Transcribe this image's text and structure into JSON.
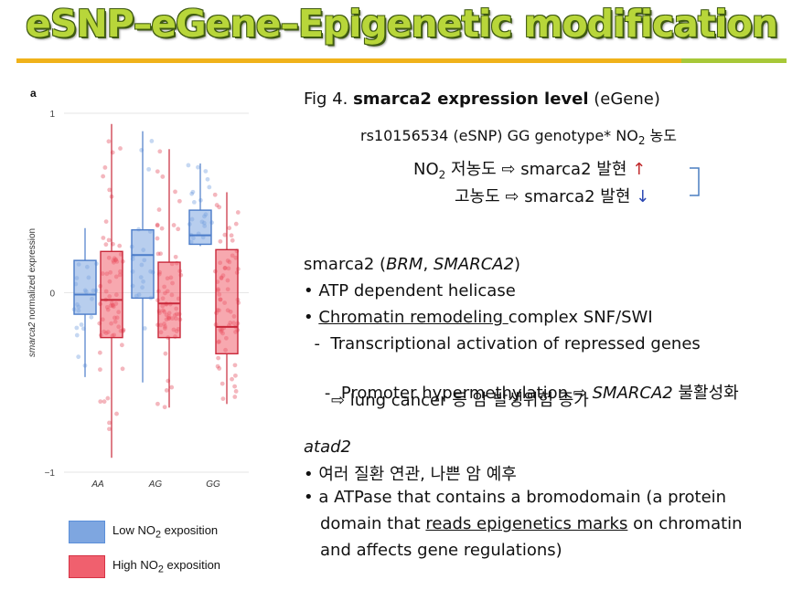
{
  "header": {
    "title": "eSNP–eGene–Epigenetic modification"
  },
  "panel_letter": "a",
  "chart_data": {
    "type": "box",
    "ylabel_italic": "smarca2",
    "ylabel_rest": " normalized expression",
    "ylim": [
      -1.1,
      1.1
    ],
    "yticks": [
      "1",
      "0",
      "−1"
    ],
    "categories": [
      "AA",
      "AG",
      "GG"
    ],
    "series": [
      {
        "name": "Low NO₂ exposition",
        "color": "#5b8fd9",
        "boxes": [
          {
            "min": -0.47,
            "q1": -0.12,
            "median": -0.01,
            "q3": 0.18,
            "max": 0.36
          },
          {
            "min": -0.5,
            "q1": -0.03,
            "median": 0.21,
            "q3": 0.35,
            "max": 0.9
          },
          {
            "min": 0.26,
            "q1": 0.27,
            "median": 0.32,
            "q3": 0.46,
            "max": 0.72
          }
        ]
      },
      {
        "name": "High NO₂ exposition",
        "color": "#e03045",
        "boxes": [
          {
            "min": -0.92,
            "q1": -0.25,
            "median": -0.04,
            "q3": 0.23,
            "max": 0.94
          },
          {
            "min": -0.64,
            "q1": -0.25,
            "median": -0.06,
            "q3": 0.17,
            "max": 0.8
          },
          {
            "min": -0.62,
            "q1": -0.34,
            "median": -0.19,
            "q3": 0.24,
            "max": 0.56
          }
        ]
      }
    ]
  },
  "legend": {
    "low": {
      "pre": "Low NO",
      "sub": "2",
      "post": " exposition",
      "color": "#7ea6e0",
      "border": "#5b8fd9"
    },
    "high": {
      "pre": "High NO",
      "sub": "2",
      "post": " exposition",
      "color": "#f0606e",
      "border": "#d63345"
    }
  },
  "content": {
    "fig_prefix": "Fig 4.  ",
    "fig_bold": "smarca2 expression level",
    "fig_suffix": " (eGene)",
    "snp_line_pre": "rs10156534 (eSNP) GG genotype* NO",
    "snp_line_sub": "2",
    "snp_line_post": " 농도",
    "low_line_pre": "NO",
    "low_line_sub": "2",
    "low_line_post": " 저농도 ⇨ smarca2 발현 ",
    "up_arrow": "↑",
    "high_line": "고농도 ⇨ smarca2 발현 ",
    "down_arrow": "↓",
    "gene1_name": "smarca2 (",
    "gene1_alias1": "BRM",
    "gene1_sep": ", ",
    "gene1_alias2": "SMARCA2",
    "gene1_close": ")",
    "b1": "• ATP dependent helicase",
    "b2_bullet": "• ",
    "b2_under": "Chromatin remodeling ",
    "b2_rest": "complex SNF/SWI",
    "d1": "  -  Transcriptional activation of repressed genes",
    "d2_pre": "  -  Promoter hypermethylation ⇨ ",
    "d2_italic": "SMARCA2",
    "d2_post": " 불활성화",
    "d3": "⇨ lung cancer 등 암 발생위험 증가",
    "gene2": "atad2",
    "g2b1": "• 여러 질환 연관, 나쁜 암 예후",
    "g2b2": "• a ATPase that contains a bromodomain (a protein",
    "g2b3_pre": "domain that ",
    "g2b3_under": "reads epigenetics marks",
    "g2b3_post": " on chromatin",
    "g2b4": "and affects gene regulations)"
  }
}
